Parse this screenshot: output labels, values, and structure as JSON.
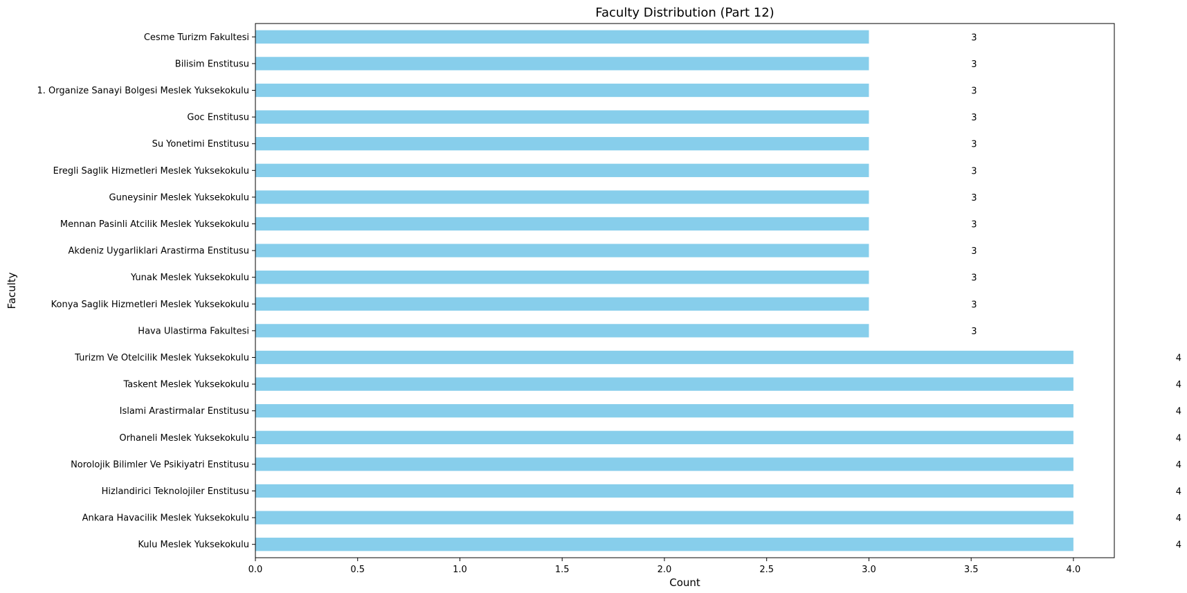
{
  "chart_data": {
    "type": "bar",
    "orientation": "horizontal",
    "title": "Faculty Distribution (Part 12)",
    "xlabel": "Count",
    "ylabel": "Faculty",
    "xlim": [
      0,
      4.2
    ],
    "xticks": [
      "0.0",
      "0.5",
      "1.0",
      "1.5",
      "2.0",
      "2.5",
      "3.0",
      "3.5",
      "4.0"
    ],
    "grid": false,
    "bar_color": "#87CEEB",
    "categories": [
      "Cesme Turizm Fakultesi",
      "Bilisim Enstitusu",
      "1. Organize Sanayi Bolgesi Meslek Yuksekokulu",
      "Goc Enstitusu",
      "Su Yonetimi Enstitusu",
      "Eregli Saglik Hizmetleri Meslek Yuksekokulu",
      "Guneysinir Meslek Yuksekokulu",
      "Mennan Pasinli Atcilik Meslek Yuksekokulu",
      "Akdeniz Uygarliklari Arastirma Enstitusu",
      "Yunak Meslek Yuksekokulu",
      "Konya Saglik Hizmetleri Meslek Yuksekokulu",
      "Hava Ulastirma Fakultesi",
      "Turizm Ve Otelcilik Meslek Yuksekokulu",
      "Taskent Meslek Yuksekokulu",
      "Islami Arastirmalar Enstitusu",
      "Orhaneli Meslek Yuksekokulu",
      "Norolojik Bilimler Ve Psikiyatri Enstitusu",
      "Hizlandirici Teknolojiler Enstitusu",
      "Ankara Havacilik Meslek Yuksekokulu",
      "Kulu Meslek Yuksekokulu"
    ],
    "values": [
      3,
      3,
      3,
      3,
      3,
      3,
      3,
      3,
      3,
      3,
      3,
      3,
      4,
      4,
      4,
      4,
      4,
      4,
      4,
      4
    ],
    "data_labels": [
      "3",
      "3",
      "3",
      "3",
      "3",
      "3",
      "3",
      "3",
      "3",
      "3",
      "3",
      "3",
      "4",
      "4",
      "4",
      "4",
      "4",
      "4",
      "4",
      "4"
    ]
  }
}
